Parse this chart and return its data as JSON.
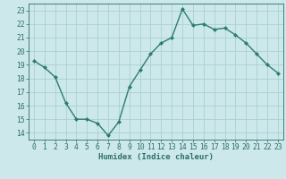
{
  "x": [
    0,
    1,
    2,
    3,
    4,
    5,
    6,
    7,
    8,
    9,
    10,
    11,
    12,
    13,
    14,
    15,
    16,
    17,
    18,
    19,
    20,
    21,
    22,
    23
  ],
  "y": [
    19.3,
    18.8,
    18.1,
    16.2,
    15.0,
    15.0,
    14.7,
    13.8,
    14.8,
    17.4,
    18.6,
    19.8,
    20.6,
    21.0,
    23.1,
    21.9,
    22.0,
    21.6,
    21.7,
    21.2,
    20.6,
    19.8,
    19.0,
    18.4
  ],
  "line_color": "#2d7d6e",
  "marker": "D",
  "marker_size": 2.0,
  "bg_color": "#cce8ea",
  "grid_color": "#aacfd4",
  "xlabel": "Humidex (Indice chaleur)",
  "ylim": [
    13.5,
    23.5
  ],
  "xlim": [
    -0.5,
    23.5
  ],
  "yticks": [
    14,
    15,
    16,
    17,
    18,
    19,
    20,
    21,
    22,
    23
  ],
  "xticks": [
    0,
    1,
    2,
    3,
    4,
    5,
    6,
    7,
    8,
    9,
    10,
    11,
    12,
    13,
    14,
    15,
    16,
    17,
    18,
    19,
    20,
    21,
    22,
    23
  ],
  "tick_color": "#2d6e6a",
  "label_fontsize": 6.5,
  "tick_fontsize": 5.8,
  "linewidth": 1.0
}
